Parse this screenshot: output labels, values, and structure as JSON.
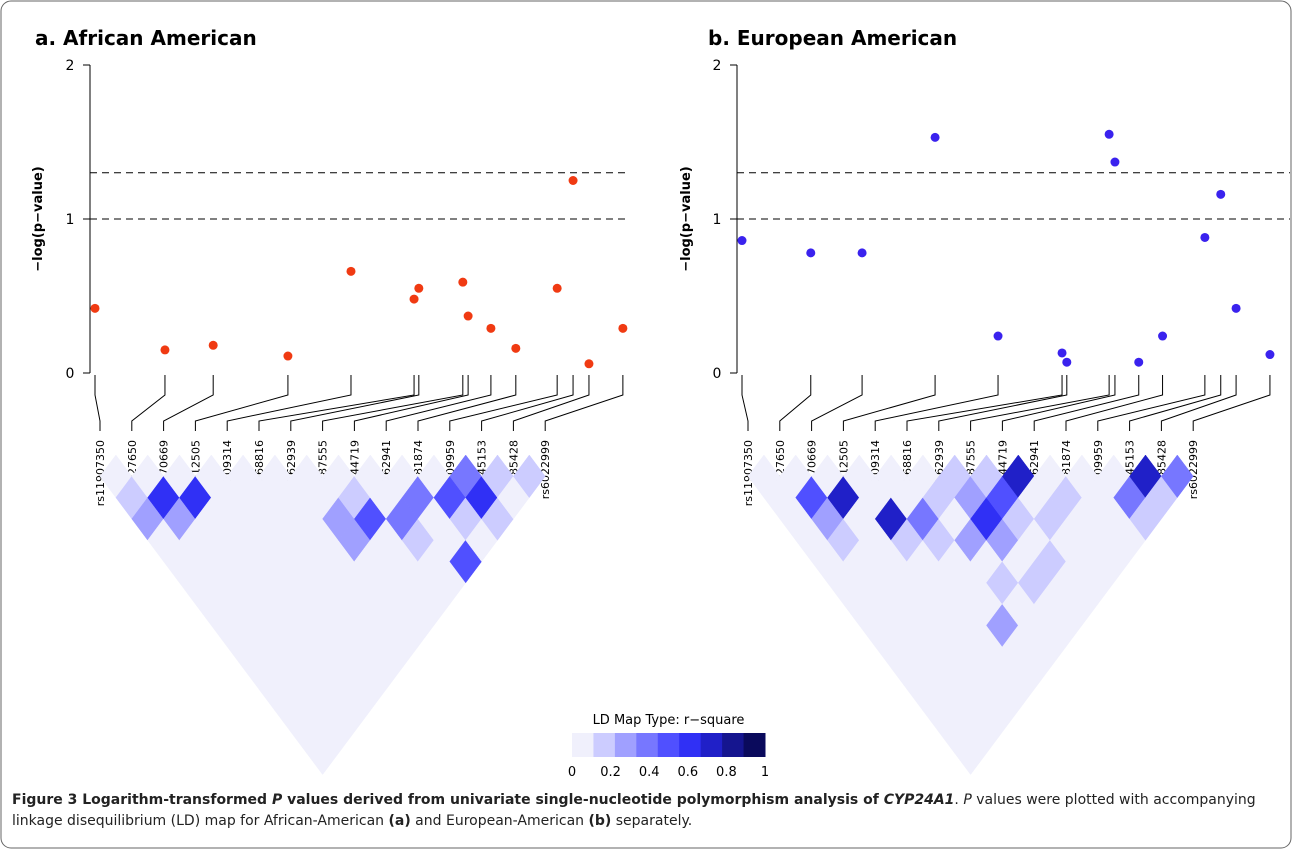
{
  "chart_data": [
    {
      "type": "scatter",
      "title": "a. African American",
      "y_label": "−log(p−value)",
      "color": "#f03a12",
      "xlim": [
        0,
        100
      ],
      "ylim": [
        0,
        2
      ],
      "yticks": [
        0,
        1,
        2
      ],
      "hlines": [
        1,
        1.3
      ],
      "x": [
        0,
        13.2,
        22.3,
        36.4,
        48.3,
        60.2,
        61.1,
        69.4,
        70.4,
        74.7,
        79.4,
        87.2,
        90.2,
        93.2,
        99.6
      ],
      "values": [
        0.42,
        0.15,
        0.18,
        0.11,
        0.66,
        0.48,
        0.55,
        0.59,
        0.37,
        0.29,
        0.16,
        0.55,
        1.25,
        0.06,
        0.29
      ],
      "snps": [
        "rs11907350",
        "rs927650",
        "rs1570669",
        "rs912505",
        "rs2209314",
        "rs6068816",
        "rs2762939",
        "rs3787555",
        "rs2244719",
        "rs2762941",
        "rs2181874",
        "rs4809959",
        "rs2245153",
        "rs2585428",
        "rs6022999"
      ],
      "ld": [
        [
          0.05,
          0.15,
          0.3,
          0.05,
          0.05,
          0.05,
          0.05,
          0.05,
          0.05,
          0.05,
          0.05,
          0.05,
          0.05,
          0.05
        ],
        [
          0.05,
          0.6,
          0.3,
          0.05,
          0.05,
          0.05,
          0.05,
          0.05,
          0.05,
          0.05,
          0.05,
          0.05,
          0.05
        ],
        [
          0.05,
          0.6,
          0.05,
          0.05,
          0.05,
          0.05,
          0.05,
          0.05,
          0.05,
          0.05,
          0.05,
          0.05
        ],
        [
          0.05,
          0.05,
          0.05,
          0.05,
          0.05,
          0.05,
          0.05,
          0.05,
          0.05,
          0.05,
          0.05
        ],
        [
          0.05,
          0.05,
          0.05,
          0.05,
          0.05,
          0.05,
          0.05,
          0.05,
          0.05,
          0.05
        ],
        [
          0.05,
          0.05,
          0.05,
          0.05,
          0.05,
          0.05,
          0.05,
          0.05,
          0.05
        ],
        [
          0.05,
          0.05,
          0.3,
          0.3,
          0.05,
          0.05,
          0.05,
          0.05
        ],
        [
          0.05,
          0.15,
          0.45,
          0.05,
          0.05,
          0.05,
          0.05
        ],
        [
          0.05,
          0.05,
          0.4,
          0.15,
          0.05,
          0.05
        ],
        [
          0.05,
          0.35,
          0.05,
          0.05,
          0.5
        ],
        [
          0.05,
          0.45,
          0.2,
          0.05
        ],
        [
          0.35,
          0.65,
          0.2
        ],
        [
          0.15,
          0.05
        ],
        [
          0.15
        ]
      ]
    },
    {
      "type": "scatter",
      "title": "b. European American",
      "y_label": "−log(p−value)",
      "color": "#3a22ee",
      "xlim": [
        0,
        100
      ],
      "ylim": [
        0,
        2
      ],
      "yticks": [
        0,
        1,
        2
      ],
      "hlines": [
        1,
        1.3
      ],
      "x": [
        0,
        13.0,
        22.7,
        36.5,
        48.4,
        60.5,
        61.4,
        69.4,
        70.5,
        75.0,
        79.5,
        87.5,
        90.5,
        93.4,
        99.8
      ],
      "values": [
        0.86,
        0.78,
        0.78,
        1.53,
        0.24,
        0.13,
        0.07,
        1.55,
        1.37,
        0.07,
        0.24,
        0.88,
        1.16,
        0.42,
        0.12
      ],
      "snps": [
        "rs11907350",
        "rs927650",
        "rs1570669",
        "rs912505",
        "rs2209314",
        "rs6068816",
        "rs2762939",
        "rs3787555",
        "rs2244719",
        "rs2762941",
        "rs2181874",
        "rs4809959",
        "rs2245153",
        "rs2585428",
        "rs6022999"
      ],
      "ld": [
        [
          0.05,
          0.05,
          0.05,
          0.05,
          0.05,
          0.05,
          0.05,
          0.05,
          0.05,
          0.05,
          0.05,
          0.05,
          0.05,
          0.05
        ],
        [
          0.05,
          0.45,
          0.3,
          0.15,
          0.05,
          0.05,
          0.05,
          0.05,
          0.05,
          0.05,
          0.05,
          0.05,
          0.05
        ],
        [
          0.05,
          0.75,
          0.05,
          0.05,
          0.05,
          0.05,
          0.05,
          0.05,
          0.05,
          0.05,
          0.05,
          0.05
        ],
        [
          0.05,
          0.05,
          0.7,
          0.15,
          0.05,
          0.05,
          0.05,
          0.05,
          0.05,
          0.05,
          0.05
        ],
        [
          0.05,
          0.05,
          0.4,
          0.15,
          0.05,
          0.05,
          0.05,
          0.3,
          0.05,
          0.05
        ],
        [
          0.05,
          0.15,
          0.05,
          0.3,
          0.05,
          0.15,
          0.05,
          0.05,
          0.05
        ],
        [
          0.15,
          0.3,
          0.65,
          0.3,
          0.05,
          0.15,
          0.05,
          0.05
        ],
        [
          0.2,
          0.55,
          0.15,
          0.05,
          0.2,
          0.05,
          0.05
        ],
        [
          0.7,
          0.05,
          0.15,
          0.05,
          0.05,
          0.05
        ],
        [
          0.05,
          0.15,
          0.05,
          0.05,
          0.05
        ],
        [
          0.05,
          0.05,
          0.05,
          0.05
        ],
        [
          0.05,
          0.35,
          0.2
        ],
        [
          0.75,
          0.2
        ],
        [
          0.35
        ]
      ]
    }
  ],
  "ld_legend": {
    "title": "LD Map Type: r−square",
    "colors": [
      "#f0f0fc",
      "#ccccff",
      "#a0a0ff",
      "#7777ff",
      "#5050ff",
      "#3030f5",
      "#2020c8",
      "#15158f",
      "#0a0a5c"
    ],
    "ticks": [
      0,
      0.2,
      0.4,
      0.6,
      0.8,
      1
    ]
  },
  "caption": [
    "Figure 3 Logarithm-transformed ",
    "P",
    " values derived from univariate single-nucleotide polymorphism analysis of ",
    "CYP24A1",
    ". ",
    "P",
    " values were plotted with accompanying linkage disequilibrium (LD) map for African-American ",
    "(a)",
    " and European-American ",
    "(b)",
    " separately."
  ]
}
